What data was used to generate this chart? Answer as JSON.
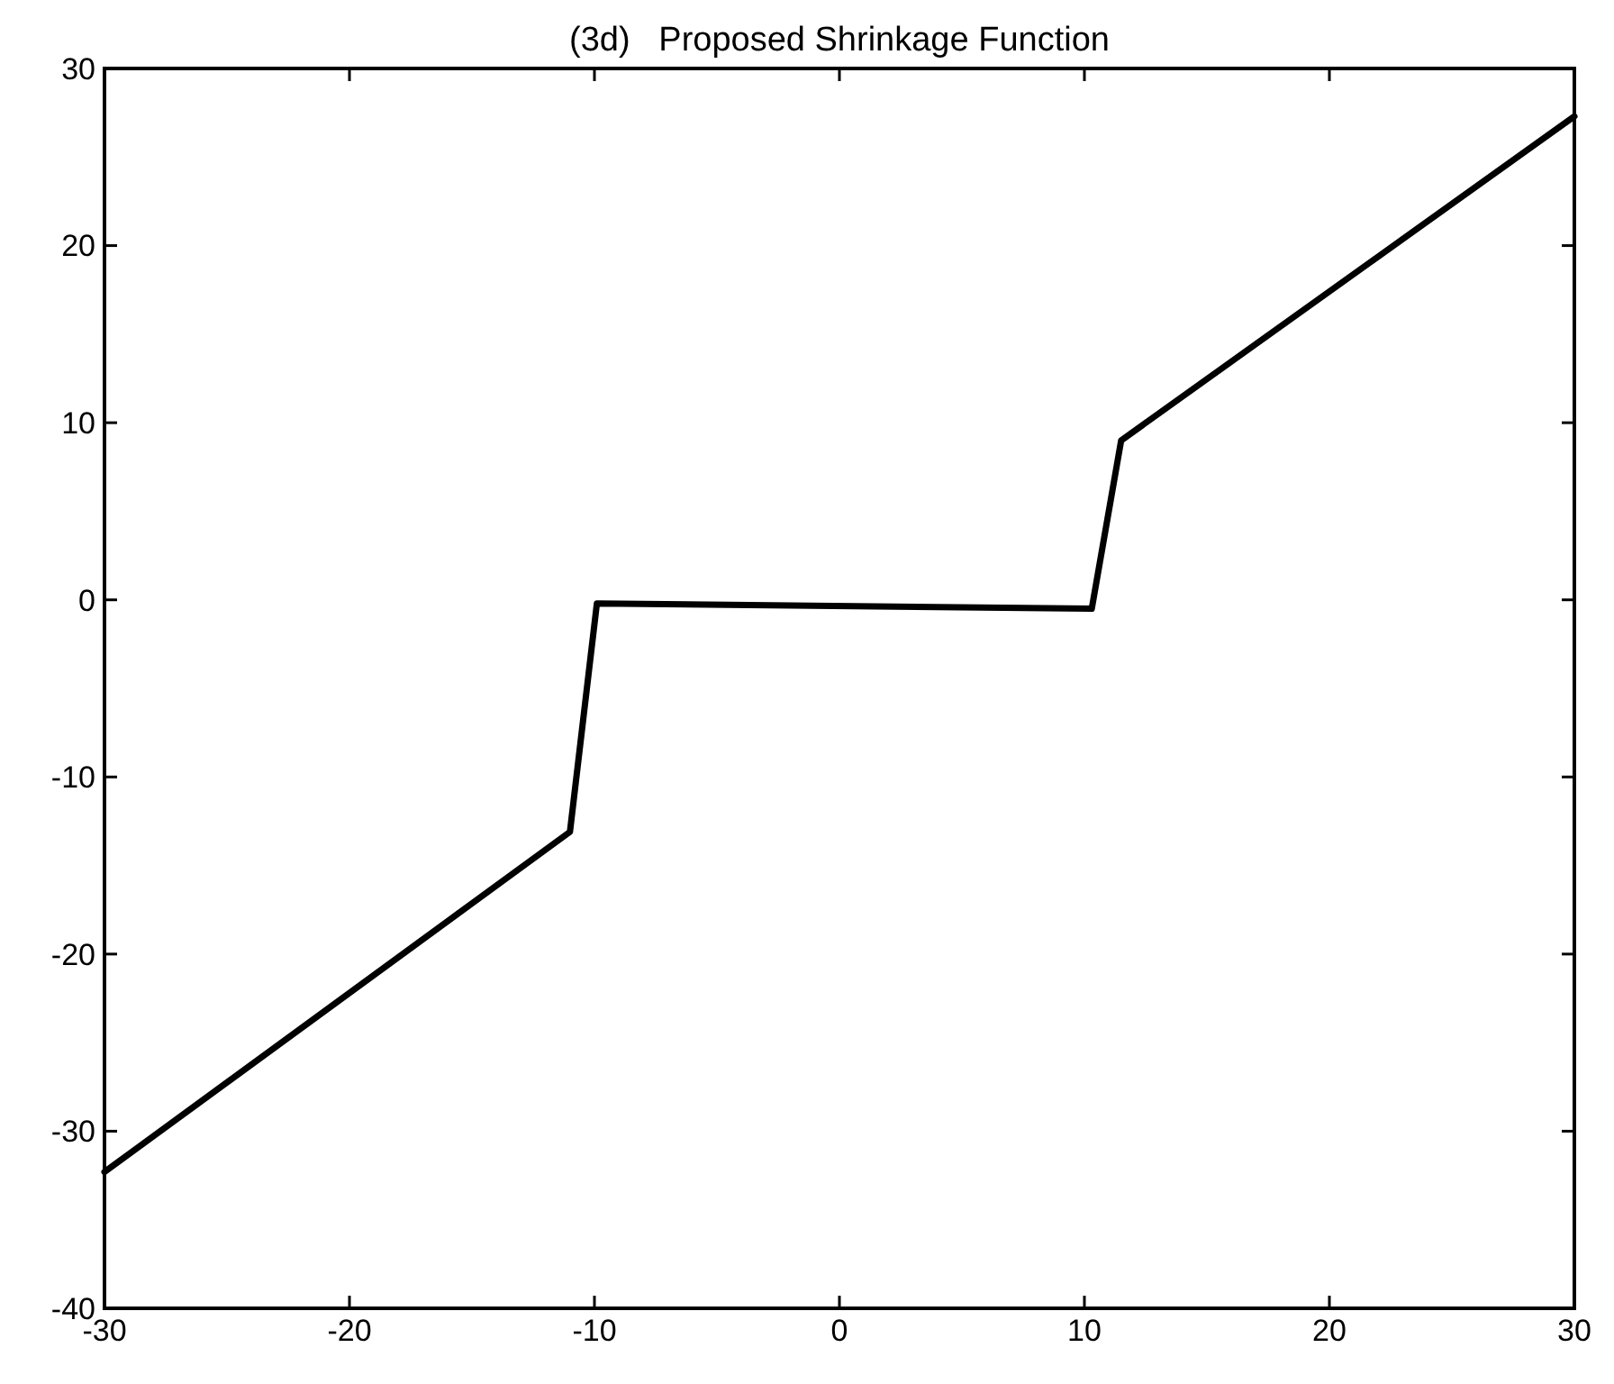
{
  "chart_data": {
    "type": "line",
    "title": "(3d)   Proposed Shrinkage Function",
    "x": [
      -30,
      -11,
      -9.9,
      10.3,
      11.5,
      30
    ],
    "series": [
      {
        "color": "#000000",
        "values": [
          -32.3,
          -13.1,
          -0.2,
          -0.5,
          9,
          27.3
        ]
      }
    ],
    "xlim": [
      -30,
      30
    ],
    "xticks": [
      -30,
      -20,
      -10,
      0,
      10,
      20,
      30
    ],
    "ylim": [
      -40,
      30
    ],
    "yticks": [
      -40,
      -30,
      -20,
      -10,
      0,
      10,
      20,
      30
    ],
    "grid": false,
    "marker": "none",
    "line_style": "solid"
  }
}
